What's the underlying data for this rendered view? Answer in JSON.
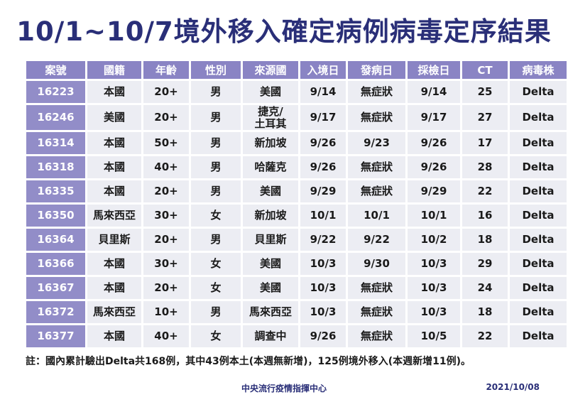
{
  "title": "10/1~10/7境外移入確定病例病毒定序結果",
  "table": {
    "headers": [
      "案號",
      "國籍",
      "年齡",
      "性別",
      "來源國",
      "入境日",
      "發病日",
      "採檢日",
      "CT",
      "病毒株"
    ],
    "rows": [
      [
        "16223",
        "本國",
        "20+",
        "男",
        "美國",
        "9/14",
        "無症狀",
        "9/14",
        "25",
        "Delta"
      ],
      [
        "16246",
        "美國",
        "20+",
        "男",
        "捷克/\n土耳其",
        "9/17",
        "無症狀",
        "9/17",
        "27",
        "Delta"
      ],
      [
        "16314",
        "本國",
        "50+",
        "男",
        "新加坡",
        "9/26",
        "9/23",
        "9/26",
        "17",
        "Delta"
      ],
      [
        "16318",
        "本國",
        "40+",
        "男",
        "哈薩克",
        "9/26",
        "無症狀",
        "9/26",
        "28",
        "Delta"
      ],
      [
        "16335",
        "本國",
        "20+",
        "男",
        "美國",
        "9/29",
        "無症狀",
        "9/29",
        "22",
        "Delta"
      ],
      [
        "16350",
        "馬來西亞",
        "30+",
        "女",
        "新加坡",
        "10/1",
        "10/1",
        "10/1",
        "16",
        "Delta"
      ],
      [
        "16364",
        "貝里斯",
        "20+",
        "男",
        "貝里斯",
        "9/22",
        "9/22",
        "10/2",
        "18",
        "Delta"
      ],
      [
        "16366",
        "本國",
        "30+",
        "女",
        "美國",
        "10/3",
        "9/30",
        "10/3",
        "29",
        "Delta"
      ],
      [
        "16367",
        "本國",
        "20+",
        "女",
        "美國",
        "10/3",
        "無症狀",
        "10/3",
        "24",
        "Delta"
      ],
      [
        "16372",
        "馬來西亞",
        "10+",
        "男",
        "馬來西亞",
        "10/3",
        "無症狀",
        "10/3",
        "18",
        "Delta"
      ],
      [
        "16377",
        "本國",
        "40+",
        "女",
        "調查中",
        "9/26",
        "無症狀",
        "10/5",
        "22",
        "Delta"
      ]
    ]
  },
  "note": "註：國內累計驗出Delta共168例，其中43例本土(本週無新增)，125例境外移入(本週新增11例)。",
  "footer": {
    "org": "中央流行疫情指揮中心",
    "date": "2021/10/08"
  },
  "colors": {
    "title": "#2a2f78",
    "header_bg": "#8a84c4",
    "case_bg": "#928dc8",
    "cell_bg": "#ecedf3"
  }
}
